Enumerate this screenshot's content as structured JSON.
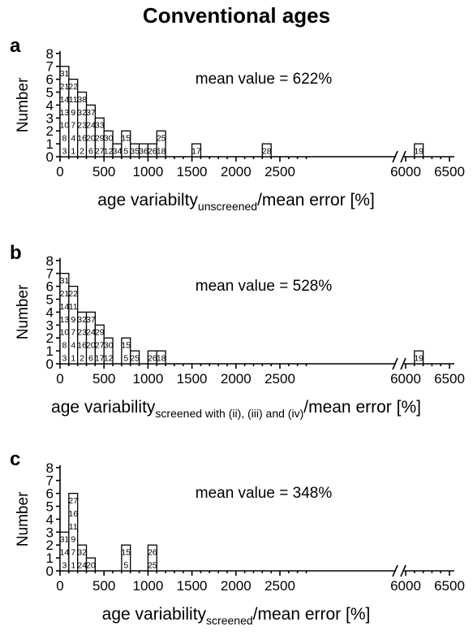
{
  "figure_title": "Conventional ages",
  "chart_data": [
    {
      "panel": "a",
      "type": "bar",
      "title": "",
      "ylabel": "Number",
      "xlabel_main": "age variabilty",
      "xlabel_sub": "unscreened",
      "xlabel_tail": "/mean error [%]",
      "annotation": "mean value = 622%",
      "x_ticks": [
        "0",
        "500",
        "1000",
        "1500",
        "2000",
        "2500",
        "6000",
        "6500"
      ],
      "y_ticks": [
        "0",
        "1",
        "2",
        "3",
        "4",
        "5",
        "6",
        "7",
        "8"
      ],
      "ylim": [
        0,
        8
      ],
      "axis_break": "between 2500 and 6000",
      "bin_width": 100,
      "bins": [
        {
          "x": 0,
          "value": 7,
          "ids": [
            "3",
            "8",
            "10",
            "13",
            "14",
            "21",
            "31"
          ]
        },
        {
          "x": 100,
          "value": 6,
          "ids": [
            "1",
            "4",
            "7",
            "9",
            "11",
            "22"
          ]
        },
        {
          "x": 200,
          "value": 5,
          "ids": [
            "2",
            "16",
            "23",
            "32",
            "38"
          ]
        },
        {
          "x": 300,
          "value": 4,
          "ids": [
            "6",
            "20",
            "24",
            "37"
          ]
        },
        {
          "x": 400,
          "value": 3,
          "ids": [
            "27",
            "29",
            "33"
          ]
        },
        {
          "x": 500,
          "value": 2,
          "ids": [
            "12",
            "30"
          ]
        },
        {
          "x": 600,
          "value": 1,
          "ids": [
            "34"
          ]
        },
        {
          "x": 700,
          "value": 2,
          "ids": [
            "5",
            "15"
          ]
        },
        {
          "x": 800,
          "value": 1,
          "ids": [
            "35"
          ]
        },
        {
          "x": 900,
          "value": 1,
          "ids": [
            "36"
          ]
        },
        {
          "x": 1000,
          "value": 1,
          "ids": [
            "26"
          ]
        },
        {
          "x": 1100,
          "value": 2,
          "ids": [
            "18",
            "25"
          ]
        },
        {
          "x": 1500,
          "value": 1,
          "ids": [
            "17"
          ]
        },
        {
          "x": 2300,
          "value": 1,
          "ids": [
            "28"
          ]
        },
        {
          "x": 6100,
          "value": 1,
          "ids": [
            "19"
          ]
        }
      ]
    },
    {
      "panel": "b",
      "type": "bar",
      "title": "",
      "ylabel": "Number",
      "xlabel_main": "age variability",
      "xlabel_sub": "screened with (ii), (iii) and (iv)",
      "xlabel_tail": "/mean error [%]",
      "annotation": "mean value = 528%",
      "x_ticks": [
        "0",
        "500",
        "1000",
        "1500",
        "2000",
        "2500",
        "6000",
        "6500"
      ],
      "y_ticks": [
        "0",
        "1",
        "2",
        "3",
        "4",
        "5",
        "6",
        "7",
        "8"
      ],
      "ylim": [
        0,
        8
      ],
      "axis_break": "between 2500 and 6000",
      "bin_width": 100,
      "bins": [
        {
          "x": 0,
          "value": 7,
          "ids": [
            "3",
            "8",
            "10",
            "13",
            "14",
            "21",
            "31"
          ]
        },
        {
          "x": 100,
          "value": 6,
          "ids": [
            "1",
            "4",
            "7",
            "9",
            "11",
            "22"
          ]
        },
        {
          "x": 200,
          "value": 4,
          "ids": [
            "2",
            "16",
            "23",
            "32"
          ]
        },
        {
          "x": 300,
          "value": 4,
          "ids": [
            "6",
            "20",
            "24",
            "37"
          ]
        },
        {
          "x": 400,
          "value": 3,
          "ids": [
            "17",
            "27",
            "29"
          ]
        },
        {
          "x": 500,
          "value": 2,
          "ids": [
            "12",
            "30"
          ]
        },
        {
          "x": 700,
          "value": 2,
          "ids": [
            "5",
            "15"
          ]
        },
        {
          "x": 800,
          "value": 1,
          "ids": [
            "25"
          ]
        },
        {
          "x": 1000,
          "value": 1,
          "ids": [
            "26"
          ]
        },
        {
          "x": 1100,
          "value": 1,
          "ids": [
            "18"
          ]
        },
        {
          "x": 6100,
          "value": 1,
          "ids": [
            "19"
          ]
        }
      ]
    },
    {
      "panel": "c",
      "type": "bar",
      "title": "",
      "ylabel": "Number",
      "xlabel_main": "age variability",
      "xlabel_sub": "screened",
      "xlabel_tail": "/mean error [%]",
      "annotation": "mean value = 348%",
      "x_ticks": [
        "0",
        "500",
        "1000",
        "1500",
        "2000",
        "2500",
        "6000",
        "6500"
      ],
      "y_ticks": [
        "0",
        "1",
        "2",
        "3",
        "4",
        "5",
        "6",
        "7",
        "8"
      ],
      "ylim": [
        0,
        8
      ],
      "axis_break": "between 2500 and 6000",
      "bin_width": 100,
      "bins": [
        {
          "x": 0,
          "value": 3,
          "ids": [
            "3",
            "14",
            "31"
          ]
        },
        {
          "x": 100,
          "value": 6,
          "ids": [
            "1",
            "7",
            "9",
            "11",
            "16",
            "27"
          ]
        },
        {
          "x": 200,
          "value": 2,
          "ids": [
            "24",
            "32"
          ]
        },
        {
          "x": 300,
          "value": 1,
          "ids": [
            "20"
          ]
        },
        {
          "x": 700,
          "value": 2,
          "ids": [
            "5",
            "15"
          ]
        },
        {
          "x": 1000,
          "value": 2,
          "ids": [
            "25",
            "26"
          ]
        }
      ]
    }
  ]
}
